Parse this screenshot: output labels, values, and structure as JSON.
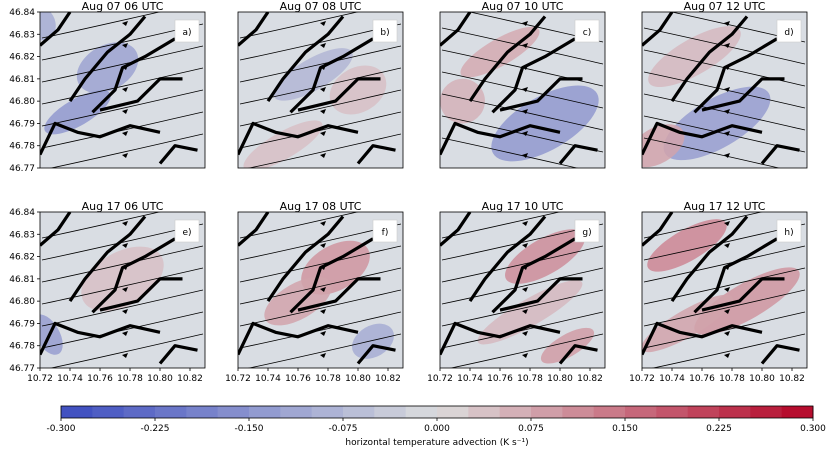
{
  "chart_data": {
    "type": "heatmap",
    "panel_titles": [
      "Aug 07 06 UTC",
      "Aug 07 08 UTC",
      "Aug 07 10 UTC",
      "Aug 07 12 UTC",
      "Aug 17 06 UTC",
      "Aug 17 08 UTC",
      "Aug 17 10 UTC",
      "Aug 17 12 UTC"
    ],
    "panel_letters": [
      "a)",
      "b)",
      "c)",
      "d)",
      "e)",
      "f)",
      "g)",
      "h)"
    ],
    "xticks": [
      "10.72",
      "10.74",
      "10.76",
      "10.78",
      "10.80",
      "10.82"
    ],
    "x_values": [
      10.72,
      10.74,
      10.76,
      10.78,
      10.8,
      10.82
    ],
    "xlim": [
      10.72,
      10.83
    ],
    "yticks": [
      "46.84",
      "46.83",
      "46.82",
      "46.81",
      "46.80",
      "46.79",
      "46.78",
      "46.77"
    ],
    "y_values": [
      46.84,
      46.83,
      46.82,
      46.81,
      46.8,
      46.79,
      46.78,
      46.77
    ],
    "ylim": [
      46.77,
      46.84
    ],
    "colorbar": {
      "label": "horizontal temperature advection (K s⁻¹)",
      "ticks": [
        "-0.300",
        "-0.225",
        "-0.150",
        "-0.075",
        "0.000",
        "0.075",
        "0.150",
        "0.225",
        "0.300"
      ],
      "tick_values": [
        -0.3,
        -0.225,
        -0.15,
        -0.075,
        0.0,
        0.075,
        0.15,
        0.225,
        0.3
      ],
      "range": [
        -0.3,
        0.3
      ],
      "levels": 24,
      "colors": {
        "min": "#3b4cc0",
        "mid": "#dcdddd",
        "max": "#b40426"
      }
    },
    "field_background": "#d9dde3",
    "contour_color": "#000000",
    "streamline_color": "#000000"
  }
}
